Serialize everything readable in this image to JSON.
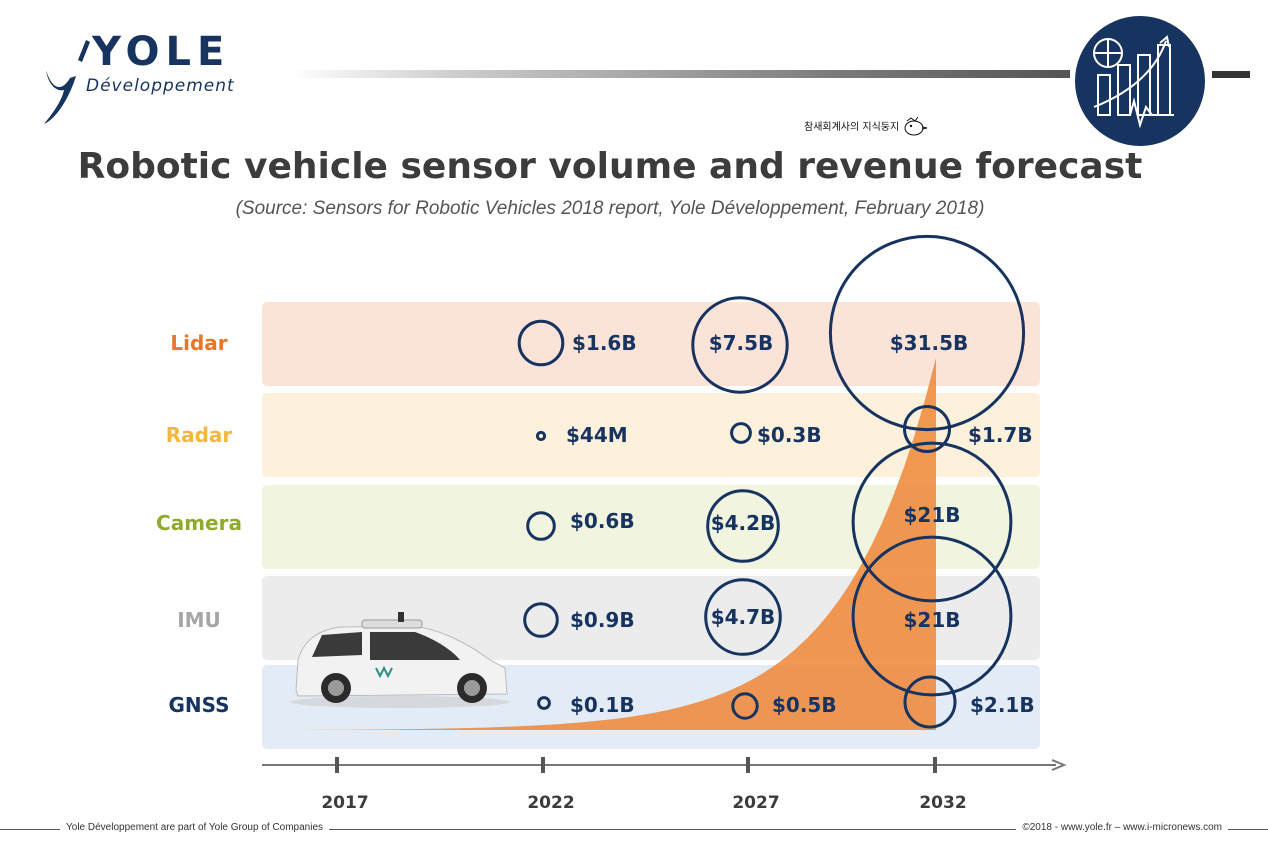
{
  "header": {
    "logo_main": "YOLE",
    "logo_sub": "Développement",
    "watermark": "참새회계사의 지식둥지"
  },
  "title": "Robotic vehicle sensor volume and revenue forecast",
  "subtitle": "(Source: Sensors for Robotic Vehicles 2018 report, Yole Développement, February 2018)",
  "footer": {
    "left": "Yole Développement are part of Yole Group of Companies",
    "right": "©2018 - www.yole.fr – www.i-micronews.com"
  },
  "colors": {
    "bubble": "#17335f",
    "area": "#ee8a3c",
    "axis": "#777777"
  },
  "chart_data": {
    "type": "bubble",
    "x": [
      "2017",
      "2022",
      "2027",
      "2032"
    ],
    "series": [
      {
        "name": "Lidar",
        "label_color": "#e9762b",
        "row_color": "#fbe3d8",
        "values": [
          null,
          1.6,
          7.5,
          31.5
        ],
        "labels": [
          "",
          "$1.6B",
          "$7.5B",
          "$31.5B"
        ]
      },
      {
        "name": "Radar",
        "label_color": "#f4b73d",
        "row_color": "#fdf1dc",
        "values": [
          null,
          0.044,
          0.3,
          1.7
        ],
        "labels": [
          "",
          "$44M",
          "$0.3B",
          "$1.7B"
        ]
      },
      {
        "name": "Camera",
        "label_color": "#8fab2e",
        "row_color": "#f1f4df",
        "values": [
          null,
          0.6,
          4.2,
          21
        ],
        "labels": [
          "",
          "$0.6B",
          "$4.2B",
          "$21B"
        ]
      },
      {
        "name": "IMU",
        "label_color": "#a6a6a6",
        "row_color": "#ececec",
        "values": [
          null,
          0.9,
          4.7,
          21
        ],
        "labels": [
          "",
          "$0.9B",
          "$4.7B",
          "$21B"
        ]
      },
      {
        "name": "GNSS",
        "label_color": "#17335f",
        "row_color": "#e3ecf6",
        "values": [
          null,
          0.1,
          0.5,
          2.1
        ],
        "labels": [
          "",
          "$0.1B",
          "$0.5B",
          "$2.1B"
        ]
      }
    ],
    "area": {
      "shape": "exponential growth",
      "x_start": "2017",
      "x_end": "2032"
    }
  }
}
